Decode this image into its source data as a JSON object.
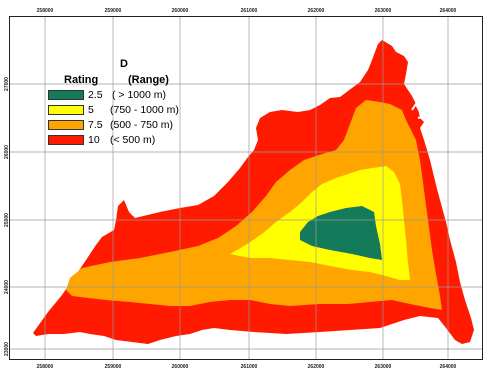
{
  "map": {
    "x_ticks": [
      "258000",
      "259000",
      "260000",
      "261000",
      "262000",
      "263000",
      "264000"
    ],
    "y_ticks": [
      "27000",
      "26000",
      "25000",
      "24000",
      "23000"
    ],
    "bottom_ticks": [
      "258000",
      "259000",
      "260000",
      "261000",
      "262000",
      "263000",
      "264000"
    ]
  },
  "legend": {
    "title": "D",
    "rating_header": "Rating",
    "range_header": "(Range)",
    "items": [
      {
        "rating": "2.5",
        "range": "( > 1000 m)",
        "color": "#137a5a"
      },
      {
        "rating": "5",
        "range": "(750 - 1000 m)",
        "color": "#ffff00"
      },
      {
        "rating": "7.5",
        "range": "(500 - 750 m)",
        "color": "#ffa500"
      },
      {
        "rating": "10",
        "range": "(< 500 m)",
        "color": "#ff1a00"
      }
    ]
  },
  "colors": {
    "red": "#ff1a00",
    "orange": "#ffa500",
    "yellow": "#ffff00",
    "green": "#137a5a",
    "grid": "#9a9a9a"
  }
}
